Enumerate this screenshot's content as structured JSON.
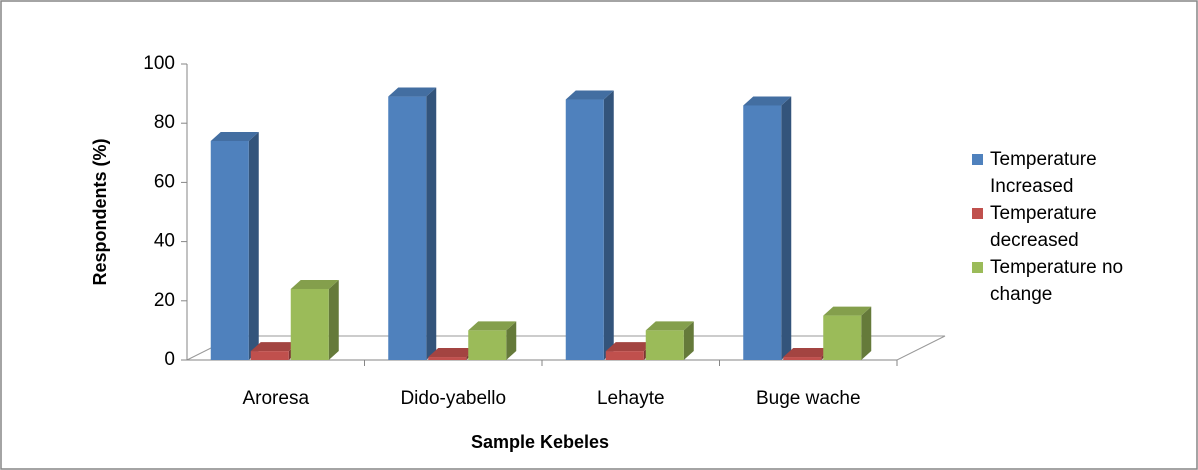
{
  "chart_data": {
    "type": "bar3d",
    "y_label": "Respondents (%)",
    "x_label": "Sample Kebeles",
    "categories": [
      "Aroresa",
      "Dido-yabello",
      "Lehayte",
      "Buge wache"
    ],
    "series": [
      {
        "name": "Temperature Increased",
        "color": "#4f81bd",
        "values": [
          74,
          89,
          88,
          86
        ]
      },
      {
        "name": "Temperature decreased",
        "color": "#c0504d",
        "values": [
          3,
          1,
          3,
          1
        ]
      },
      {
        "name": "Temperature no change",
        "color": "#9bbb59",
        "values": [
          24,
          10,
          10,
          15
        ]
      }
    ],
    "ylim": [
      0,
      100
    ],
    "yticks": [
      0,
      20,
      40,
      60,
      80,
      100
    ]
  }
}
